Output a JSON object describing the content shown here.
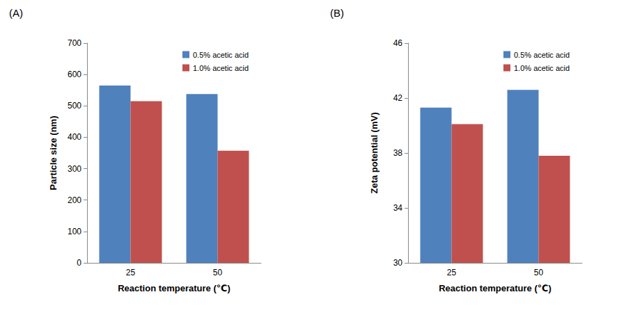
{
  "chart_data": [
    {
      "type": "bar",
      "title": "(A)",
      "x_label": "Reaction temperature (℃)",
      "y_label": "Particle size (nm)",
      "categories": [
        "25",
        "50"
      ],
      "series": [
        {
          "name": "0.5% acetic acid",
          "color": "#4f81bd",
          "values": [
            565,
            538
          ]
        },
        {
          "name": "1.0% acetic acid",
          "color": "#c0504d",
          "values": [
            515,
            357
          ]
        }
      ],
      "ylim": [
        0,
        700
      ],
      "yticks": [
        0,
        100,
        200,
        300,
        400,
        500,
        600,
        700
      ],
      "legend": "upper right",
      "grid": false
    },
    {
      "type": "bar",
      "title": "(B)",
      "x_label": "Reaction temperature (℃)",
      "y_label": "Zeta potential (mV)",
      "categories": [
        "25",
        "50"
      ],
      "series": [
        {
          "name": "0.5% acetic acid",
          "color": "#4f81bd",
          "values": [
            41.3,
            42.6
          ]
        },
        {
          "name": "1.0% acetic acid",
          "color": "#c0504d",
          "values": [
            40.1,
            37.8
          ]
        }
      ],
      "ylim": [
        30,
        46
      ],
      "yticks": [
        30,
        34,
        38,
        42,
        46
      ],
      "legend": "upper right",
      "grid": false
    }
  ]
}
